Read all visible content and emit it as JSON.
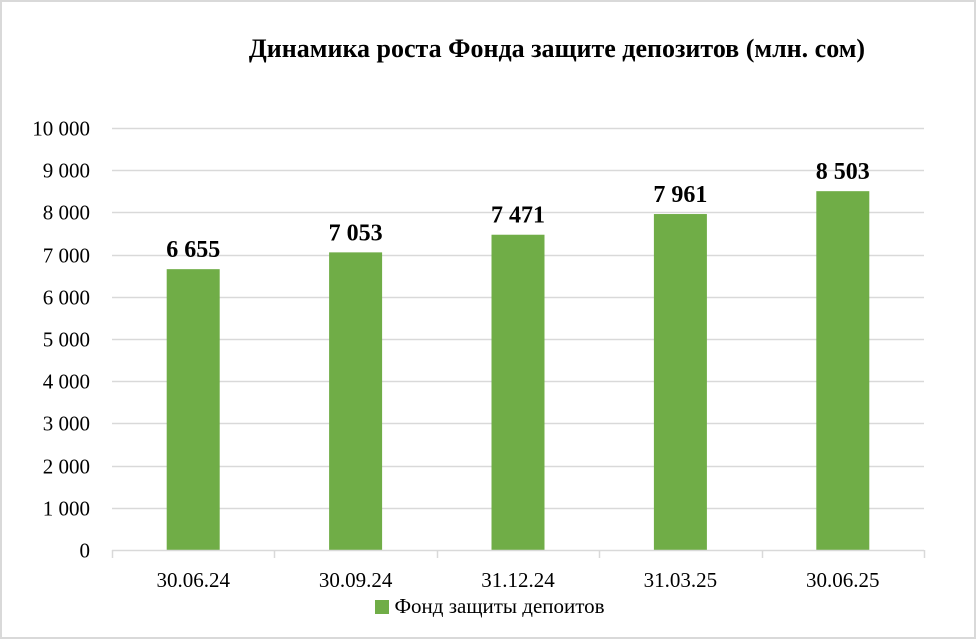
{
  "chart_data": {
    "type": "bar",
    "title": "Динамика роста Фонда защите депозитов (млн. сом)",
    "categories": [
      "30.06.24",
      "30.09.24",
      "31.12.24",
      "31.03.25",
      "30.06.25"
    ],
    "series": [
      {
        "name": "Фонд защиты депоитов",
        "values": [
          6655,
          7053,
          7471,
          7961,
          8503
        ],
        "labels": [
          "6 655",
          "7 053",
          "7 471",
          "7 961",
          "8 503"
        ],
        "color": "#70ad47"
      }
    ],
    "xlabel": "",
    "ylabel": "",
    "ylim": [
      0,
      10000
    ],
    "yticks": [
      0,
      1000,
      2000,
      3000,
      4000,
      5000,
      6000,
      7000,
      8000,
      9000,
      10000
    ],
    "ytick_labels": [
      "0",
      "1 000",
      "2 000",
      "3 000",
      "4 000",
      "5 000",
      "6 000",
      "7 000",
      "8 000",
      "9 000",
      "10 000"
    ],
    "grid": true,
    "grid_color": "#d9d9d9",
    "legend_position": "bottom",
    "data_labels": true
  },
  "legend": {
    "label": "Фонд защиты депоитов",
    "color": "#70ad47"
  }
}
